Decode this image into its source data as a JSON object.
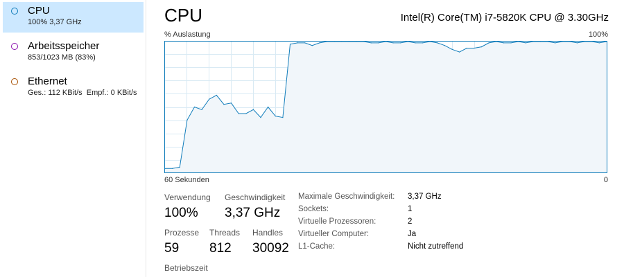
{
  "colors": {
    "cpu_accent": "#117dbb",
    "cpu_fill": "#f1f6fa",
    "memory_accent": "#8b12ae",
    "ethernet_accent": "#a74f01",
    "selected_bg": "#cce8ff",
    "grid": "#d9eaf4"
  },
  "sidebar": {
    "items": [
      {
        "label": "CPU",
        "sub": "100%  3,37 GHz",
        "icon": "circle-icon"
      },
      {
        "label": "Arbeitsspeicher",
        "sub": "853/1023 MB (83%)",
        "icon": "circle-icon"
      },
      {
        "label": "Ethernet",
        "sub_parts": [
          "Ges.: ",
          "112 KBit/s",
          "  Empf.: ",
          "0 KBit/s"
        ],
        "icon": "circle-icon"
      }
    ]
  },
  "main": {
    "title": "CPU",
    "cpu_model": "Intel(R) Core(TM) i7-5820K CPU @ 3.30GHz",
    "graph": {
      "top_left": "% Auslastung",
      "top_right": "100%",
      "bottom_left": "60 Sekunden",
      "bottom_right": "0"
    },
    "stats": {
      "usage_label": "Verwendung",
      "usage_value": "100%",
      "speed_label": "Geschwindigkeit",
      "speed_value": "3,37 GHz",
      "processes_label": "Prozesse",
      "processes_value": "59",
      "threads_label": "Threads",
      "threads_value": "812",
      "handles_label": "Handles",
      "handles_value": "30092",
      "uptime_label": "Betriebszeit"
    },
    "info": [
      {
        "label": "Maximale Geschwindigkeit:",
        "value": "3,37 GHz"
      },
      {
        "label": "Sockets:",
        "value": "1"
      },
      {
        "label": "Virtuelle Prozessoren:",
        "value": "2"
      },
      {
        "label": "Virtueller Computer:",
        "value": "Ja"
      },
      {
        "label": "L1-Cache:",
        "value": "Nicht zutreffend"
      }
    ]
  },
  "chart_data": {
    "type": "area",
    "xlabel": "60 Sekunden",
    "ylabel": "% Auslastung",
    "xlim": [
      60,
      0
    ],
    "ylim": [
      0,
      100
    ],
    "grid": true,
    "x": [
      60,
      59,
      58,
      57,
      56,
      55,
      54,
      53,
      52,
      51,
      50,
      49,
      48,
      47,
      46,
      45,
      44,
      43,
      42,
      41,
      40,
      39,
      38,
      37,
      36,
      35,
      34,
      33,
      32,
      31,
      30,
      29,
      28,
      27,
      26,
      25,
      24,
      23,
      22,
      21,
      20,
      19,
      18,
      17,
      16,
      15,
      14,
      13,
      12,
      11,
      10,
      9,
      8,
      7,
      6,
      5,
      4,
      3,
      2,
      1,
      0
    ],
    "values": [
      3,
      3,
      4,
      40,
      50,
      48,
      56,
      59,
      52,
      53,
      45,
      45,
      48,
      42,
      50,
      43,
      42,
      98,
      99,
      99,
      97,
      99,
      100,
      100,
      100,
      100,
      100,
      100,
      99,
      99,
      100,
      99,
      99,
      100,
      99,
      99,
      100,
      99,
      97,
      94,
      92,
      95,
      95,
      96,
      99,
      100,
      99,
      99,
      100,
      99,
      100,
      100,
      100,
      99,
      100,
      100,
      99,
      100,
      100,
      99,
      100
    ]
  }
}
